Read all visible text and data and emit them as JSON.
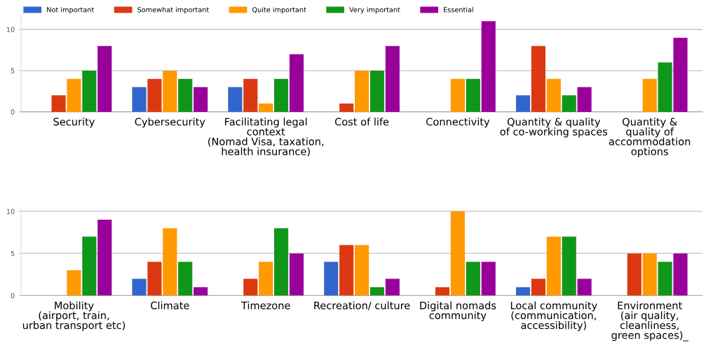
{
  "chart_data": [
    {
      "type": "bar",
      "categories": [
        "Security",
        "Cybersecurity",
        "Facilitating legal\ncontext\n(Nomad Visa, taxation,\nhealth insurance)",
        "Cost of life",
        "Connectivity",
        "Quantity & quality\nof co-working spaces",
        "Quantity &\nquality of\naccommodation\noptions"
      ],
      "series": [
        {
          "name": "Not important",
          "color": "#3366cc",
          "values": [
            0,
            3,
            3,
            0,
            0,
            2,
            0
          ]
        },
        {
          "name": "Somewhat important",
          "color": "#dc3912",
          "values": [
            2,
            4,
            4,
            1,
            0,
            8,
            0
          ]
        },
        {
          "name": "Quite important",
          "color": "#ff9900",
          "values": [
            4,
            5,
            1,
            5,
            4,
            4,
            4
          ]
        },
        {
          "name": "Very important",
          "color": "#109618",
          "values": [
            5,
            4,
            4,
            5,
            4,
            2,
            6
          ]
        },
        {
          "name": "Essential",
          "color": "#990099",
          "values": [
            8,
            3,
            7,
            8,
            11,
            3,
            9
          ]
        }
      ],
      "ylim": [
        0,
        11.6
      ],
      "yticks": [
        0,
        5,
        10
      ],
      "grid": "y",
      "legend": "top left"
    },
    {
      "type": "bar",
      "categories": [
        "Mobility\n(airport, train,\nurban transport etc)",
        "Climate",
        "Timezone",
        "Recreation/ culture",
        "Digital nomads\ncommunity",
        "Local community\n(communication,\naccessibility)",
        "Environment\n(air quality,\ncleanliness,\ngreen spaces)_"
      ],
      "series": [
        {
          "color": "#3366cc",
          "values": [
            0,
            2,
            0,
            4,
            0,
            1,
            0
          ]
        },
        {
          "color": "#dc3912",
          "values": [
            0,
            4,
            2,
            6,
            1,
            2,
            5
          ]
        },
        {
          "color": "#ff9900",
          "values": [
            3,
            8,
            4,
            6,
            10,
            7,
            5
          ]
        },
        {
          "color": "#109618",
          "values": [
            7,
            4,
            8,
            1,
            4,
            7,
            4
          ]
        },
        {
          "color": "#990099",
          "values": [
            9,
            1,
            5,
            2,
            4,
            2,
            5
          ]
        }
      ],
      "ylim": [
        0,
        10.5
      ],
      "yticks": [
        0,
        5,
        10
      ],
      "grid": "y"
    }
  ]
}
